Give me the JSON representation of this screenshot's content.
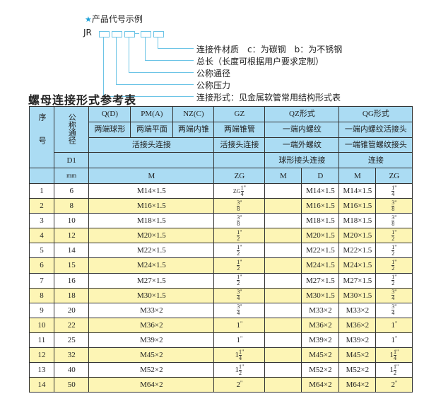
{
  "code_example": {
    "title": "产品代号示例",
    "star_icon": "star",
    "prefix": "JR",
    "labels": [
      "连接件材质　c：为碳钢　b：为不锈钢",
      "总长（长度可根据用户要求定制）",
      "公称通径",
      "公称压力",
      "连接形式：见金属软管常用结构形式表"
    ]
  },
  "table_title": "螺母连接形式参考表",
  "header": {
    "seq": "序号",
    "dn": "公称通径",
    "d1": "D1",
    "mm": "mm",
    "q": "Q(D)",
    "pm": "PM(A)",
    "nz": "NZ(C)",
    "gz": "GZ",
    "qz": "QZ形式",
    "qg": "QG形式",
    "q_desc": "两端球形",
    "pm_desc": "两端平面",
    "nz_desc": "两端内锥",
    "gz_desc": "两端锥管",
    "qz_desc1": "一端内螺纹",
    "qg_desc1": "一端内螺纹活接头",
    "m_conn": "活接头连接",
    "gz_conn": "活接头连接",
    "qz_desc2": "一端外螺纹",
    "qg_desc2": "一端锥管螺纹接头",
    "qz_desc3": "球形接头连接",
    "qg_desc3": "连接",
    "m": "M",
    "zg": "ZG",
    "qz_m": "M",
    "qz_d": "D",
    "qg_m": "M",
    "qg_zg": "ZG"
  },
  "rows": [
    {
      "no": "1",
      "dn": "6",
      "m": "M14×1.5",
      "gz": {
        "pre": "ZG",
        "whole": "",
        "num": "1",
        "den": "4"
      },
      "qz_d": "M14×1.5",
      "qg_m": "M14×1.5",
      "qg_zg": {
        "whole": "",
        "num": "1",
        "den": "4"
      }
    },
    {
      "no": "2",
      "dn": "8",
      "m": "M16×1.5",
      "gz": {
        "whole": "",
        "num": "3",
        "den": "8"
      },
      "qz_d": "M16×1.5",
      "qg_m": "M16×1.5",
      "qg_zg": {
        "whole": "",
        "num": "3",
        "den": "8"
      }
    },
    {
      "no": "3",
      "dn": "10",
      "m": "M18×1.5",
      "gz": {
        "whole": "",
        "num": "3",
        "den": "8"
      },
      "qz_d": "M18×1.5",
      "qg_m": "M18×1.5",
      "qg_zg": {
        "whole": "",
        "num": "3",
        "den": "8"
      }
    },
    {
      "no": "4",
      "dn": "12",
      "m": "M20×1.5",
      "gz": {
        "whole": "",
        "num": "1",
        "den": "2"
      },
      "qz_d": "M20×1.5",
      "qg_m": "M20×1.5",
      "qg_zg": {
        "whole": "",
        "num": "1",
        "den": "2"
      }
    },
    {
      "no": "5",
      "dn": "14",
      "m": "M22×1.5",
      "gz": {
        "whole": "",
        "num": "1",
        "den": "2"
      },
      "qz_d": "M22×1.5",
      "qg_m": "M22×1.5",
      "qg_zg": {
        "whole": "",
        "num": "1",
        "den": "2"
      }
    },
    {
      "no": "6",
      "dn": "15",
      "m": "M24×1.5",
      "gz": {
        "whole": "",
        "num": "1",
        "den": "2"
      },
      "qz_d": "M24×1.5",
      "qg_m": "M24×1.5",
      "qg_zg": {
        "whole": "",
        "num": "1",
        "den": "2"
      }
    },
    {
      "no": "7",
      "dn": "16",
      "m": "M27×1.5",
      "gz": {
        "whole": "",
        "num": "1",
        "den": "2"
      },
      "qz_d": "M27×1.5",
      "qg_m": "M27×1.5",
      "qg_zg": {
        "whole": "",
        "num": "1",
        "den": "2"
      }
    },
    {
      "no": "8",
      "dn": "18",
      "m": "M30×1.5",
      "gz": {
        "whole": "",
        "num": "3",
        "den": "4"
      },
      "qz_d": "M30×1.5",
      "qg_m": "M30×1.5",
      "qg_zg": {
        "whole": "",
        "num": "3",
        "den": "4"
      }
    },
    {
      "no": "9",
      "dn": "20",
      "m": "M33×2",
      "gz": {
        "whole": "",
        "num": "3",
        "den": "4"
      },
      "qz_d": "M33×2",
      "qg_m": "M33×2",
      "qg_zg": {
        "whole": "",
        "num": "3",
        "den": "4"
      }
    },
    {
      "no": "10",
      "dn": "22",
      "m": "M36×2",
      "gz": {
        "whole": "1"
      },
      "qz_d": "M36×2",
      "qg_m": "M36×2",
      "qg_zg": {
        "whole": "1"
      }
    },
    {
      "no": "11",
      "dn": "25",
      "m": "M39×2",
      "gz": {
        "whole": "1"
      },
      "qz_d": "M39×2",
      "qg_m": "M39×2",
      "qg_zg": {
        "whole": "1"
      }
    },
    {
      "no": "12",
      "dn": "32",
      "m": "M45×2",
      "gz": {
        "whole": "1",
        "num": "1",
        "den": "4"
      },
      "qz_d": "M45×2",
      "qg_m": "M45×2",
      "qg_zg": {
        "whole": "1",
        "num": "1",
        "den": "4"
      }
    },
    {
      "no": "13",
      "dn": "40",
      "m": "M52×2",
      "gz": {
        "whole": "1",
        "num": "1",
        "den": "2"
      },
      "qz_d": "M52×2",
      "qg_m": "M52×2",
      "qg_zg": {
        "whole": "1",
        "num": "1",
        "den": "2"
      }
    },
    {
      "no": "14",
      "dn": "50",
      "m": "M64×2",
      "gz": {
        "whole": "2"
      },
      "qz_d": "M64×2",
      "qg_m": "M64×2",
      "qg_zg": {
        "whole": "2"
      }
    }
  ],
  "inch_mark": "\"",
  "colors": {
    "header_bg": "#abdcf3",
    "alt_row_bg": "#fdf5b5",
    "line": "#6cc4e6"
  }
}
